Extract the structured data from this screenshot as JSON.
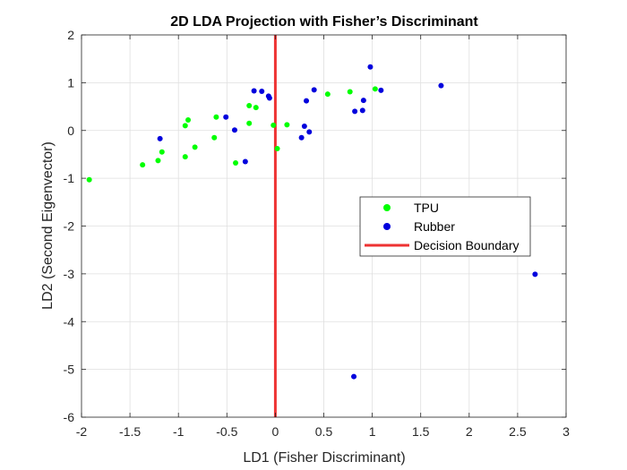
{
  "chart_data": {
    "type": "scatter",
    "title": "2D LDA Projection with Fisher’s Discriminant",
    "xlabel": "LD1 (Fisher Discriminant)",
    "ylabel": "LD2 (Second Eigenvector)",
    "xlim": [
      -2,
      3
    ],
    "ylim": [
      -6,
      2
    ],
    "xticks": [
      -2,
      -1.5,
      -1,
      -0.5,
      0,
      0.5,
      1,
      1.5,
      2,
      2.5,
      3
    ],
    "yticks": [
      -6,
      -5,
      -4,
      -3,
      -2,
      -1,
      0,
      1,
      2
    ],
    "xtick_labels": [
      "-2",
      "-1.5",
      "-1",
      "-0.5",
      "0",
      "0.5",
      "1",
      "1.5",
      "2",
      "2.5",
      "3"
    ],
    "ytick_labels": [
      "-6",
      "-5",
      "-4",
      "-3",
      "-2",
      "-1",
      "0",
      "1",
      "2"
    ],
    "grid": true,
    "legend_position": "center-right",
    "series": [
      {
        "name": "TPU",
        "color": "#00ff00",
        "points": [
          [
            -1.92,
            -1.03
          ],
          [
            -1.37,
            -0.72
          ],
          [
            -1.21,
            -0.63
          ],
          [
            -1.17,
            -0.45
          ],
          [
            -0.93,
            0.1
          ],
          [
            -0.9,
            0.22
          ],
          [
            -0.93,
            -0.55
          ],
          [
            -0.83,
            -0.35
          ],
          [
            -0.63,
            -0.15
          ],
          [
            -0.61,
            0.28
          ],
          [
            -0.41,
            -0.68
          ],
          [
            -0.27,
            0.15
          ],
          [
            -0.27,
            0.52
          ],
          [
            -0.2,
            0.48
          ],
          [
            -0.02,
            0.11
          ],
          [
            0.02,
            -0.38
          ],
          [
            0.12,
            0.12
          ],
          [
            0.54,
            0.76
          ],
          [
            0.77,
            0.81
          ],
          [
            1.03,
            0.87
          ]
        ]
      },
      {
        "name": "Rubber",
        "color": "#0000dd",
        "points": [
          [
            -1.19,
            -0.17
          ],
          [
            -0.51,
            0.28
          ],
          [
            -0.42,
            0.01
          ],
          [
            -0.31,
            -0.65
          ],
          [
            -0.22,
            0.83
          ],
          [
            -0.14,
            0.82
          ],
          [
            -0.07,
            0.72
          ],
          [
            -0.06,
            0.68
          ],
          [
            0.27,
            -0.15
          ],
          [
            0.3,
            0.09
          ],
          [
            0.32,
            0.62
          ],
          [
            0.35,
            -0.03
          ],
          [
            0.4,
            0.85
          ],
          [
            0.82,
            0.4
          ],
          [
            0.9,
            0.42
          ],
          [
            0.91,
            0.63
          ],
          [
            0.98,
            1.33
          ],
          [
            1.09,
            0.84
          ],
          [
            1.71,
            0.94
          ],
          [
            2.68,
            -3.01
          ],
          [
            0.81,
            -5.15
          ]
        ]
      }
    ],
    "decision_boundary": {
      "name": "Decision Boundary",
      "x": 0,
      "color": "#ee3333"
    }
  }
}
